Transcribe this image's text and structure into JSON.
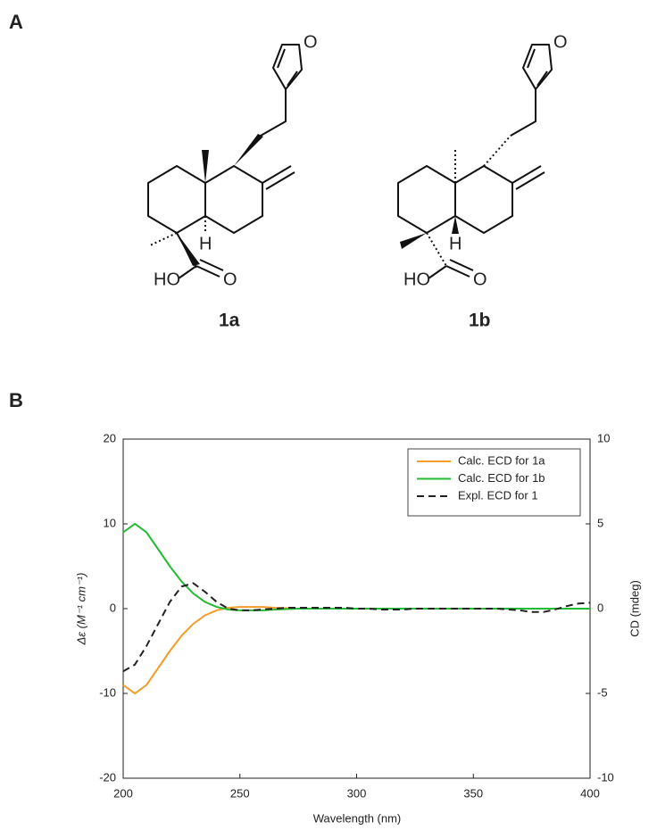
{
  "panel_a": {
    "label": "A",
    "structures": [
      {
        "name": "1a",
        "atom_labels": [
          "O",
          "HO",
          "O",
          "H"
        ]
      },
      {
        "name": "1b",
        "atom_labels": [
          "O",
          "HO",
          "O",
          "H"
        ]
      }
    ]
  },
  "panel_b": {
    "label": "B"
  },
  "chart_data": {
    "type": "line",
    "x_label": "Wavelength (nm)",
    "y_label": "Δε (M⁻¹ cm⁻¹)",
    "y2_label": "CD (mdeg)",
    "x": [
      200,
      205,
      210,
      215,
      220,
      225,
      230,
      235,
      240,
      245,
      250,
      255,
      260,
      265,
      270,
      275,
      280,
      285,
      290,
      295,
      300,
      305,
      310,
      315,
      320,
      325,
      330,
      335,
      340,
      345,
      350,
      355,
      360,
      365,
      370,
      375,
      380,
      385,
      390,
      395,
      400
    ],
    "series": [
      {
        "name": "Calc. ECD for 1a",
        "color": "#f39c2a",
        "values": [
          -9,
          -10,
          -9,
          -7,
          -5,
          -3.2,
          -1.8,
          -0.8,
          -0.2,
          0.1,
          0.2,
          0.2,
          0.2,
          0.1,
          0.05,
          0,
          0,
          0,
          0,
          0,
          0,
          0,
          0,
          0,
          0,
          0,
          0,
          0,
          0,
          0,
          0,
          0,
          0,
          0,
          0,
          0,
          0,
          0,
          0,
          0,
          0
        ]
      },
      {
        "name": "Calc. ECD for 1b",
        "color": "#22bb33",
        "values": [
          9,
          10,
          9,
          7,
          5,
          3.2,
          1.8,
          0.8,
          0.2,
          -0.1,
          -0.2,
          -0.2,
          -0.2,
          -0.1,
          -0.05,
          0,
          0,
          0,
          0,
          0,
          0,
          0,
          0,
          0,
          0,
          0,
          0,
          0,
          0,
          0,
          0,
          0,
          0,
          0,
          0,
          0,
          0,
          0,
          0,
          0,
          0
        ]
      },
      {
        "name": "Expl. ECD for 1",
        "color": "#222222",
        "axis": "y2",
        "dash": true,
        "values": [
          -3.7,
          -3.3,
          -2.2,
          -0.9,
          0.4,
          1.3,
          1.5,
          1.0,
          0.4,
          0,
          -0.1,
          -0.1,
          -0.05,
          0,
          0.05,
          0.05,
          0.05,
          0.05,
          0.05,
          0.05,
          0,
          0,
          -0.05,
          -0.05,
          -0.05,
          0,
          0,
          0,
          0,
          0,
          0,
          0,
          0,
          -0.05,
          -0.1,
          -0.2,
          -0.2,
          -0.05,
          0.15,
          0.3,
          0.35
        ]
      }
    ],
    "xlim": [
      200,
      400
    ],
    "xticks": [
      200,
      250,
      300,
      350,
      400
    ],
    "ylim": [
      -20,
      20
    ],
    "yticks": [
      -20,
      -10,
      0,
      10,
      20
    ],
    "y2lim": [
      -10,
      10
    ],
    "y2ticks": [
      -10,
      -5,
      0,
      5,
      10
    ],
    "legend": "upper right"
  }
}
